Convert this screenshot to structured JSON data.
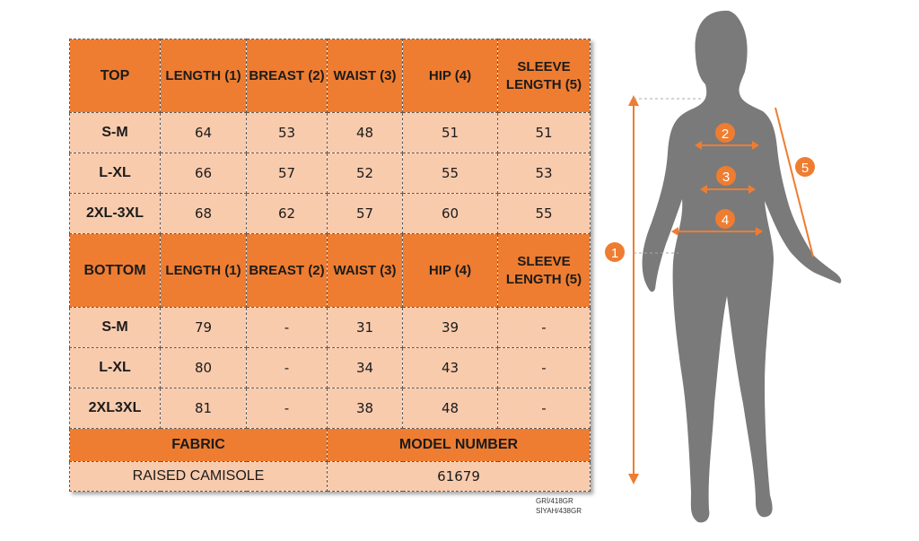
{
  "top_table": {
    "header": [
      "TOP",
      "LENGTH (1)",
      "BREAST (2)",
      "WAIST (3)",
      "HIP (4)",
      "SLEEVE LENGTH (5)"
    ],
    "rows": [
      {
        "size": "S-M",
        "length": "64",
        "breast": "53",
        "waist": "48",
        "hip": "51",
        "sleeve": "51"
      },
      {
        "size": "L-XL",
        "length": "66",
        "breast": "57",
        "waist": "52",
        "hip": "55",
        "sleeve": "53"
      },
      {
        "size": "2XL-3XL",
        "length": "68",
        "breast": "62",
        "waist": "57",
        "hip": "60",
        "sleeve": "55"
      }
    ]
  },
  "bottom_table": {
    "header": [
      "BOTTOM",
      "LENGTH (1)",
      "BREAST (2)",
      "WAIST (3)",
      "HIP (4)",
      "SLEEVE LENGTH (5)"
    ],
    "rows": [
      {
        "size": "S-M",
        "length": "79",
        "breast": "-",
        "waist": "31",
        "hip": "39",
        "sleeve": "-"
      },
      {
        "size": "L-XL",
        "length": "80",
        "breast": "-",
        "waist": "34",
        "hip": "43",
        "sleeve": "-"
      },
      {
        "size": "2XL3XL",
        "length": "81",
        "breast": "-",
        "waist": "38",
        "hip": "48",
        "sleeve": "-"
      }
    ]
  },
  "footer": {
    "fabric_label": "FABRIC",
    "model_label": "MODEL NUMBER",
    "fabric_value": "RAISED CAMISOLE",
    "model_value": "61679"
  },
  "color_codes": [
    "GRİ/418GR",
    "SİYAH/438GR"
  ],
  "figure": {
    "markers": [
      "1",
      "2",
      "3",
      "4",
      "5"
    ],
    "accent_color": "#ee7d31",
    "silhouette_color": "#7a7a7a"
  }
}
